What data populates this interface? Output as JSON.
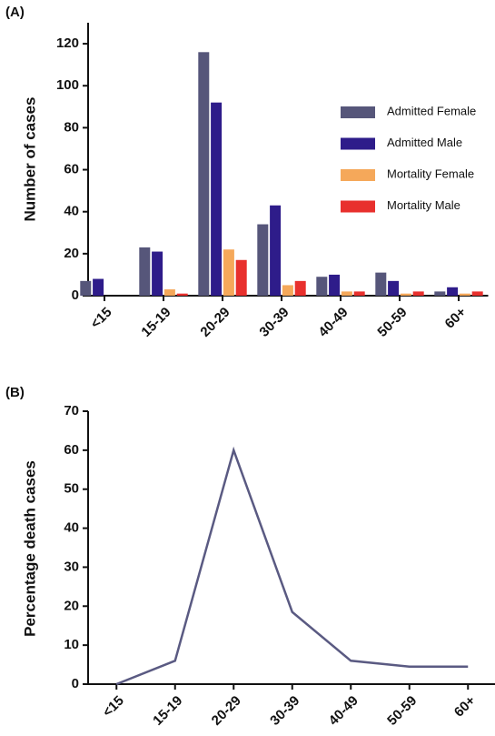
{
  "chart_data": [
    {
      "type": "bar",
      "panel_label": "(A)",
      "y_label": "Number of cases",
      "categories": [
        "<15",
        "15-19",
        "20-29",
        "30-39",
        "40-49",
        "50-59",
        "60+"
      ],
      "series": [
        {
          "name": "Admitted Female",
          "color": "#56567a",
          "values": [
            7,
            23,
            116,
            34,
            9,
            11,
            2
          ]
        },
        {
          "name": "Admitted Male",
          "color": "#2e1c8a",
          "values": [
            8,
            21,
            92,
            43,
            10,
            7,
            4
          ]
        },
        {
          "name": "Mortality Female",
          "color": "#f5a85a",
          "values": [
            0,
            3,
            22,
            5,
            2,
            1,
            1
          ]
        },
        {
          "name": "Mortality Male",
          "color": "#e8302d",
          "values": [
            0,
            1,
            17,
            7,
            2,
            2,
            2
          ]
        }
      ],
      "ylim": [
        0,
        130
      ],
      "yticks": [
        0,
        20,
        40,
        60,
        80,
        100,
        120
      ],
      "legend": "right"
    },
    {
      "type": "line",
      "panel_label": "(B)",
      "y_label": "Percentage death cases",
      "categories": [
        "<15",
        "15-19",
        "20-29",
        "30-39",
        "40-49",
        "50-59",
        "60+"
      ],
      "color": "#5a5a82",
      "values": [
        0,
        6,
        60,
        18.5,
        6,
        4.5,
        4.5
      ],
      "ylim": [
        0,
        70
      ],
      "yticks": [
        0,
        10,
        20,
        30,
        40,
        50,
        60,
        70
      ]
    }
  ]
}
